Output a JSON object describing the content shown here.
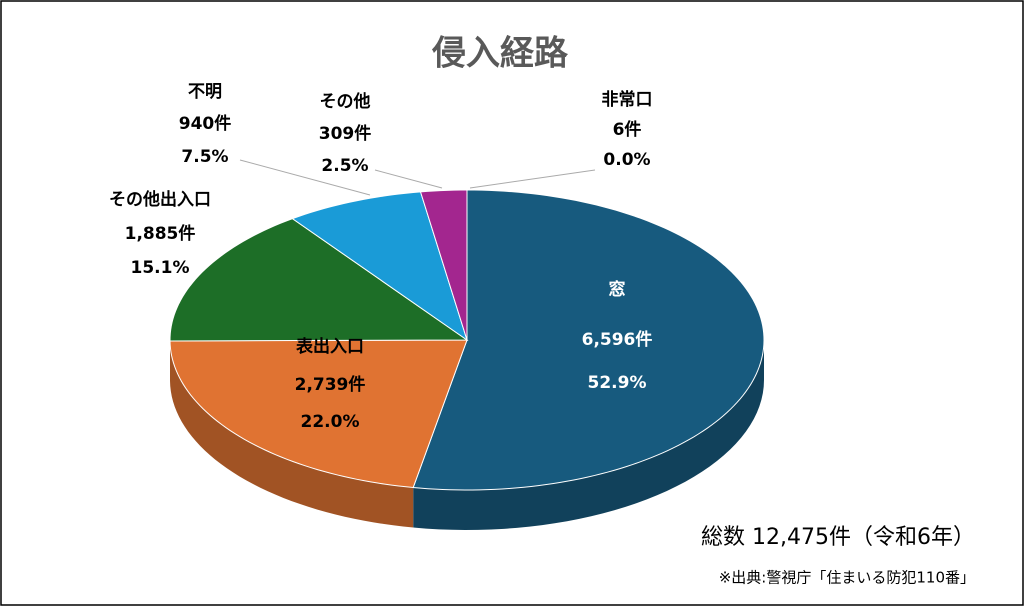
{
  "chart_data": {
    "type": "pie",
    "title": "侵入経路",
    "categories": [
      "窓",
      "表出入口",
      "その他出入口",
      "不明",
      "その他",
      "非常口"
    ],
    "values": [
      52.9,
      22.0,
      15.1,
      7.5,
      2.5,
      0.0
    ],
    "value_labels": [
      "52.9%",
      "22.0%",
      "15.1%",
      "7.5%",
      "2.5%",
      "0.0%"
    ],
    "counts": [
      6596,
      2739,
      1885,
      940,
      309,
      6
    ],
    "count_labels": [
      "6,596件",
      "2,739件",
      "1,885件",
      "940件",
      "309件",
      "6件"
    ],
    "colors": [
      "#175a7e",
      "#e07332",
      "#1d6e27",
      "#1a9bd7",
      "#a3268f",
      "#4472c4"
    ],
    "total": "総数 12,475件（令和6年）",
    "source": "※出典:警視庁「住まいる防犯110番」"
  }
}
